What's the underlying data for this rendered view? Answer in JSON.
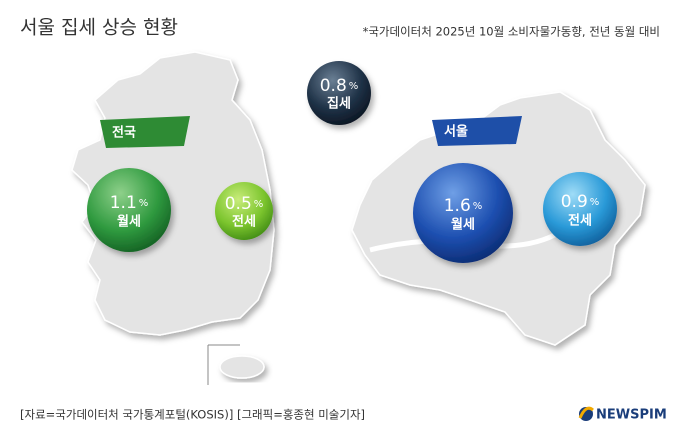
{
  "title": "서울 집세 상승 현황",
  "note": "*국가데이터처 2025년 10월 소비자물가동향, 전년 동월 대비",
  "overall": {
    "value": 0.8,
    "unit": "%",
    "label": "집세"
  },
  "national": {
    "label": "전국",
    "bubbles": [
      {
        "value": 1.1,
        "unit": "%",
        "label": "월세"
      },
      {
        "value": 0.5,
        "unit": "%",
        "label": "전세"
      }
    ]
  },
  "seoul": {
    "label": "서울",
    "bubbles": [
      {
        "value": 1.6,
        "unit": "%",
        "label": "월세"
      },
      {
        "value": 0.9,
        "unit": "%",
        "label": "전세"
      }
    ]
  },
  "footer": {
    "source": "[자료=국가데이터처 국가통계포털(KOSIS)] [그래픽=홍종현 미술기자]",
    "logo": "NEWSPIM"
  }
}
